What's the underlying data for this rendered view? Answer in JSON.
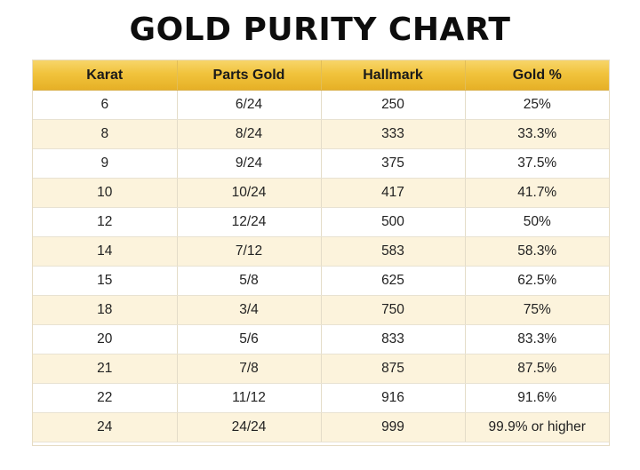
{
  "chart_data": {
    "type": "table",
    "title": "GOLD PURITY CHART",
    "columns": [
      "Karat",
      "Parts Gold",
      "Hallmark",
      "Gold %"
    ],
    "rows": [
      [
        "6",
        "6/24",
        "250",
        "25%"
      ],
      [
        "8",
        "8/24",
        "333",
        "33.3%"
      ],
      [
        "9",
        "9/24",
        "375",
        "37.5%"
      ],
      [
        "10",
        "10/24",
        "417",
        "41.7%"
      ],
      [
        "12",
        "12/24",
        "500",
        "50%"
      ],
      [
        "14",
        "7/12",
        "583",
        "58.3%"
      ],
      [
        "15",
        "5/8",
        "625",
        "62.5%"
      ],
      [
        "18",
        "3/4",
        "750",
        "75%"
      ],
      [
        "20",
        "5/6",
        "833",
        "83.3%"
      ],
      [
        "21",
        "7/8",
        "875",
        "87.5%"
      ],
      [
        "22",
        "11/12",
        "916",
        "91.6%"
      ],
      [
        "24",
        "24/24",
        "999",
        "99.9% or higher"
      ]
    ],
    "colors": {
      "header": "#f1c33c",
      "row_alt": "#fcf3dc",
      "row": "#ffffff",
      "text": "#222222"
    }
  }
}
